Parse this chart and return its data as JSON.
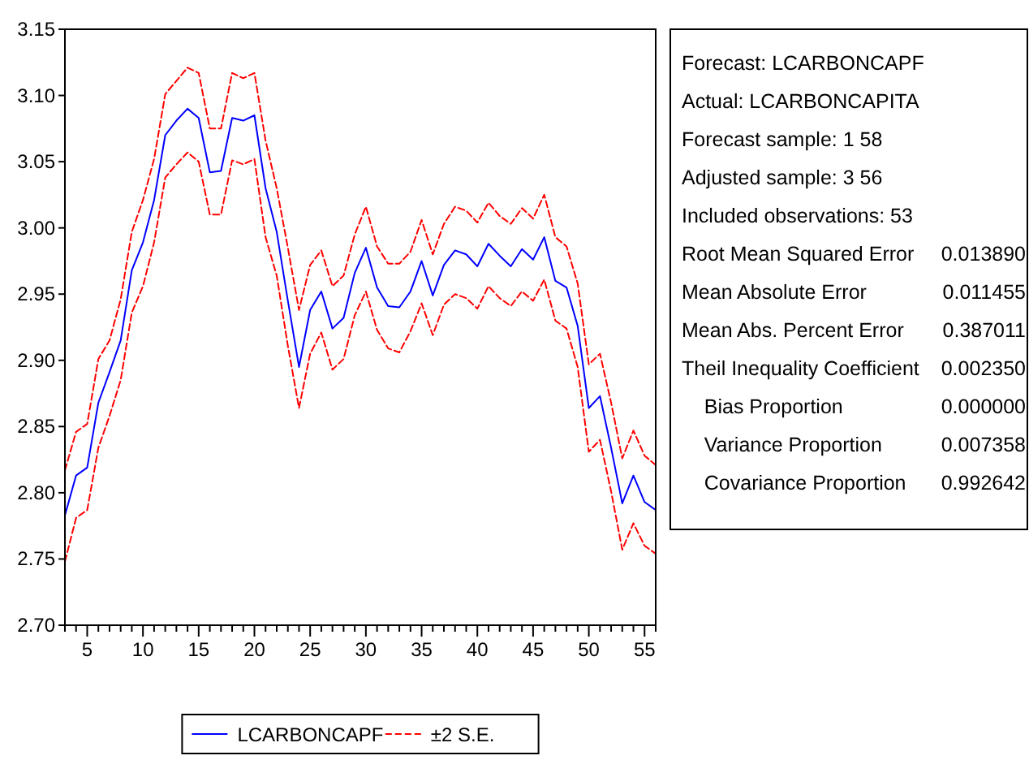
{
  "chart_data": {
    "type": "line",
    "legend": "bottom",
    "grid": false,
    "x": [
      3,
      4,
      5,
      6,
      7,
      8,
      9,
      10,
      11,
      12,
      13,
      14,
      15,
      16,
      17,
      18,
      19,
      20,
      21,
      22,
      23,
      24,
      25,
      26,
      27,
      28,
      29,
      30,
      31,
      32,
      33,
      34,
      35,
      36,
      37,
      38,
      39,
      40,
      41,
      42,
      43,
      44,
      45,
      46,
      47,
      48,
      49,
      50,
      51,
      52,
      53,
      54,
      55,
      56
    ],
    "xlim": [
      3,
      56
    ],
    "xticks": [
      {
        "value": 3,
        "label": null
      },
      {
        "value": 4,
        "label": null
      },
      5,
      {
        "value": 6,
        "label": null
      },
      {
        "value": 7,
        "label": null
      },
      {
        "value": 8,
        "label": null
      },
      {
        "value": 9,
        "label": null
      },
      10,
      {
        "value": 11,
        "label": null
      },
      {
        "value": 12,
        "label": null
      },
      {
        "value": 13,
        "label": null
      },
      {
        "value": 14,
        "label": null
      },
      15,
      {
        "value": 16,
        "label": null
      },
      {
        "value": 17,
        "label": null
      },
      {
        "value": 18,
        "label": null
      },
      {
        "value": 19,
        "label": null
      },
      20,
      {
        "value": 21,
        "label": null
      },
      {
        "value": 22,
        "label": null
      },
      {
        "value": 23,
        "label": null
      },
      {
        "value": 24,
        "label": null
      },
      25,
      {
        "value": 26,
        "label": null
      },
      {
        "value": 27,
        "label": null
      },
      {
        "value": 28,
        "label": null
      },
      {
        "value": 29,
        "label": null
      },
      30,
      {
        "value": 31,
        "label": null
      },
      {
        "value": 32,
        "label": null
      },
      {
        "value": 33,
        "label": null
      },
      {
        "value": 34,
        "label": null
      },
      35,
      {
        "value": 36,
        "label": null
      },
      {
        "value": 37,
        "label": null
      },
      {
        "value": 38,
        "label": null
      },
      {
        "value": 39,
        "label": null
      },
      40,
      {
        "value": 41,
        "label": null
      },
      {
        "value": 42,
        "label": null
      },
      {
        "value": 43,
        "label": null
      },
      {
        "value": 44,
        "label": null
      },
      45,
      {
        "value": 46,
        "label": null
      },
      {
        "value": 47,
        "label": null
      },
      {
        "value": 48,
        "label": null
      },
      {
        "value": 49,
        "label": null
      },
      50,
      {
        "value": 51,
        "label": null
      },
      {
        "value": 52,
        "label": null
      },
      {
        "value": 53,
        "label": null
      },
      {
        "value": 54,
        "label": null
      },
      55,
      {
        "value": 56,
        "label": null
      }
    ],
    "ylim": [
      2.7,
      3.15
    ],
    "yticks": [
      {
        "value": 2.7,
        "label": "2.70"
      },
      {
        "value": 2.75,
        "label": "2.75"
      },
      {
        "value": 2.8,
        "label": "2.80"
      },
      {
        "value": 2.85,
        "label": "2.85"
      },
      {
        "value": 2.9,
        "label": "2.90"
      },
      {
        "value": 2.95,
        "label": "2.95"
      },
      {
        "value": 3.0,
        "label": "3.00"
      },
      {
        "value": 3.05,
        "label": "3.05"
      },
      {
        "value": 3.1,
        "label": "3.10"
      },
      {
        "value": 3.15,
        "label": "3.15"
      }
    ],
    "series": [
      {
        "name": "LCARBONCAPF",
        "color": "#0000ff",
        "line_style": "solid",
        "values": [
          2.783,
          2.813,
          2.819,
          2.868,
          2.891,
          2.915,
          2.968,
          2.989,
          3.021,
          3.07,
          3.081,
          3.09,
          3.083,
          3.042,
          3.043,
          3.083,
          3.081,
          3.085,
          3.03,
          2.997,
          2.945,
          2.895,
          2.938,
          2.952,
          2.924,
          2.932,
          2.966,
          2.985,
          2.955,
          2.941,
          2.94,
          2.952,
          2.975,
          2.949,
          2.972,
          2.983,
          2.98,
          2.971,
          2.988,
          2.979,
          2.971,
          2.984,
          2.976,
          2.993,
          2.96,
          2.955,
          2.926,
          2.864,
          2.873,
          2.834,
          2.792,
          2.813,
          2.793,
          2.787
        ]
      },
      {
        "name": "±2 S.E.",
        "color": "#ff0000",
        "line_style": "dashed",
        "values": [
          2.817,
          2.846,
          2.852,
          2.901,
          2.915,
          2.946,
          2.997,
          3.021,
          3.052,
          3.101,
          3.111,
          3.121,
          3.117,
          3.075,
          3.075,
          3.117,
          3.113,
          3.117,
          3.066,
          3.03,
          2.985,
          2.938,
          2.972,
          2.983,
          2.956,
          2.964,
          2.995,
          3.016,
          2.986,
          2.973,
          2.973,
          2.982,
          3.006,
          2.98,
          3.003,
          3.016,
          3.013,
          3.004,
          3.019,
          3.009,
          3.003,
          3.015,
          3.007,
          3.025,
          2.993,
          2.986,
          2.958,
          2.897,
          2.905,
          2.868,
          2.826,
          2.847,
          2.828,
          2.821
        ]
      },
      {
        "color": "#ff0000",
        "line_style": "dashed",
        "values": [
          2.748,
          2.781,
          2.787,
          2.834,
          2.858,
          2.885,
          2.936,
          2.956,
          2.989,
          3.038,
          3.048,
          3.057,
          3.05,
          3.01,
          3.01,
          3.051,
          3.048,
          3.052,
          2.993,
          2.964,
          2.911,
          2.864,
          2.905,
          2.921,
          2.893,
          2.901,
          2.934,
          2.952,
          2.923,
          2.909,
          2.906,
          2.922,
          2.943,
          2.919,
          2.942,
          2.95,
          2.947,
          2.939,
          2.956,
          2.947,
          2.941,
          2.952,
          2.945,
          2.961,
          2.93,
          2.924,
          2.895,
          2.831,
          2.84,
          2.801,
          2.757,
          2.777,
          2.76,
          2.754
        ]
      }
    ],
    "annotations": [
      "Forecast: LCARBONCAPF",
      "Actual: LCARBONCAPITA",
      "Forecast sample: 1 58",
      "Adjusted sample: 3 56",
      "Included observations: 53",
      "Root Mean Squared Error\t0.013890",
      "Mean Absolute Error\t0.011455",
      "Mean Abs. Percent Error\t0.387011",
      "Theil Inequality Coefficient\t0.002350",
      "    Bias Proportion\t0.000000",
      "    Variance Proportion\t0.007358",
      "    Covariance Proportion\t0.992642"
    ]
  }
}
